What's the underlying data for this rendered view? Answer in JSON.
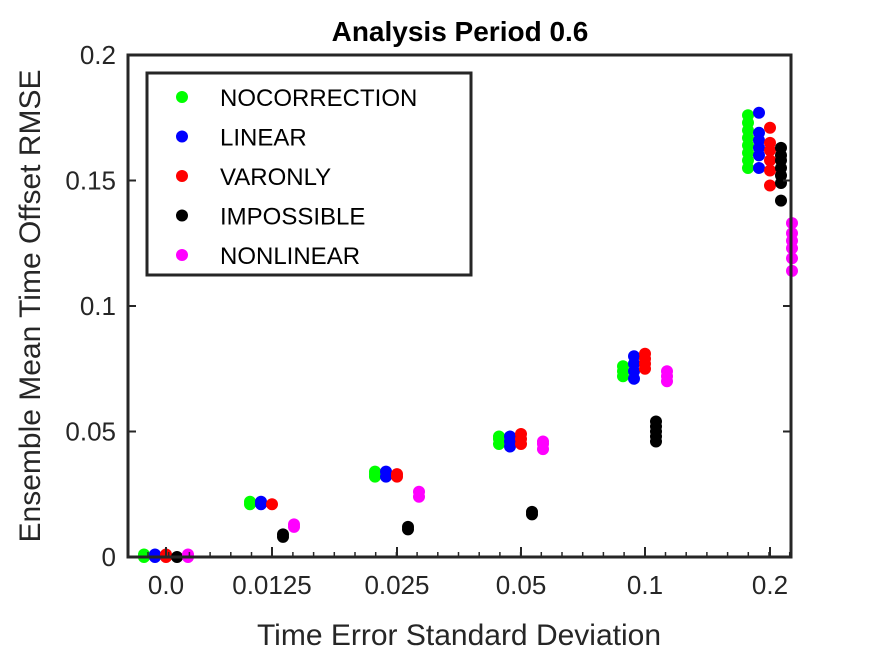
{
  "chart_data": {
    "type": "scatter",
    "title": "Analysis Period 0.6",
    "xlabel": "Time Error Standard Deviation",
    "ylabel": "Ensemble Mean Time Offset RMSE",
    "categories": [
      "0.0",
      "0.0125",
      "0.025",
      "0.05",
      "0.1",
      "0.2"
    ],
    "ylim": [
      0,
      0.2
    ],
    "yticks": [
      "0",
      "0.05",
      "0.1",
      "0.15",
      "0.2"
    ],
    "grid": false,
    "legend_position": "top-left",
    "series": [
      {
        "name": "NOCORRECTION",
        "color": "#00ff00",
        "points": [
          [
            0,
            [
              0.0,
              0.001
            ]
          ],
          [
            1,
            [
              0.021,
              0.022
            ]
          ],
          [
            2,
            [
              0.032,
              0.033,
              0.034
            ]
          ],
          [
            3,
            [
              0.045,
              0.047,
              0.048
            ]
          ],
          [
            4,
            [
              0.072,
              0.074,
              0.076
            ]
          ],
          [
            5,
            [
              0.155,
              0.158,
              0.161,
              0.164,
              0.167,
              0.17,
              0.173,
              0.176
            ]
          ]
        ]
      },
      {
        "name": "LINEAR",
        "color": "#0000ff",
        "points": [
          [
            0,
            [
              0.0,
              0.001
            ]
          ],
          [
            1,
            [
              0.021,
              0.022
            ]
          ],
          [
            2,
            [
              0.032,
              0.034
            ]
          ],
          [
            3,
            [
              0.044,
              0.046,
              0.048
            ]
          ],
          [
            4,
            [
              0.071,
              0.074,
              0.077,
              0.08
            ]
          ],
          [
            5,
            [
              0.155,
              0.16,
              0.163,
              0.166,
              0.169,
              0.177
            ]
          ]
        ]
      },
      {
        "name": "VARONLY",
        "color": "#ff0000",
        "points": [
          [
            0,
            [
              0.0,
              0.001
            ]
          ],
          [
            1,
            [
              0.021
            ]
          ],
          [
            2,
            [
              0.032,
              0.033
            ]
          ],
          [
            3,
            [
              0.045,
              0.047,
              0.049
            ]
          ],
          [
            4,
            [
              0.075,
              0.077,
              0.079,
              0.081
            ]
          ],
          [
            5,
            [
              0.148,
              0.154,
              0.158,
              0.162,
              0.165,
              0.171
            ]
          ]
        ]
      },
      {
        "name": "IMPOSSIBLE",
        "color": "#000000",
        "points": [
          [
            0,
            [
              0.0
            ]
          ],
          [
            1,
            [
              0.008,
              0.009
            ]
          ],
          [
            2,
            [
              0.011,
              0.012
            ]
          ],
          [
            3,
            [
              0.017,
              0.018
            ]
          ],
          [
            4,
            [
              0.046,
              0.048,
              0.05,
              0.052,
              0.054
            ]
          ],
          [
            5,
            [
              0.142,
              0.149,
              0.152,
              0.155,
              0.158,
              0.16,
              0.163
            ]
          ]
        ]
      },
      {
        "name": "NONLINEAR",
        "color": "#ff00ff",
        "points": [
          [
            0,
            [
              0.0,
              0.001
            ]
          ],
          [
            1,
            [
              0.012,
              0.013
            ]
          ],
          [
            2,
            [
              0.024,
              0.026
            ]
          ],
          [
            3,
            [
              0.043,
              0.045,
              0.046
            ]
          ],
          [
            4,
            [
              0.07,
              0.072,
              0.074
            ]
          ],
          [
            5,
            [
              0.114,
              0.119,
              0.123,
              0.126,
              0.129,
              0.133
            ]
          ]
        ]
      }
    ]
  }
}
